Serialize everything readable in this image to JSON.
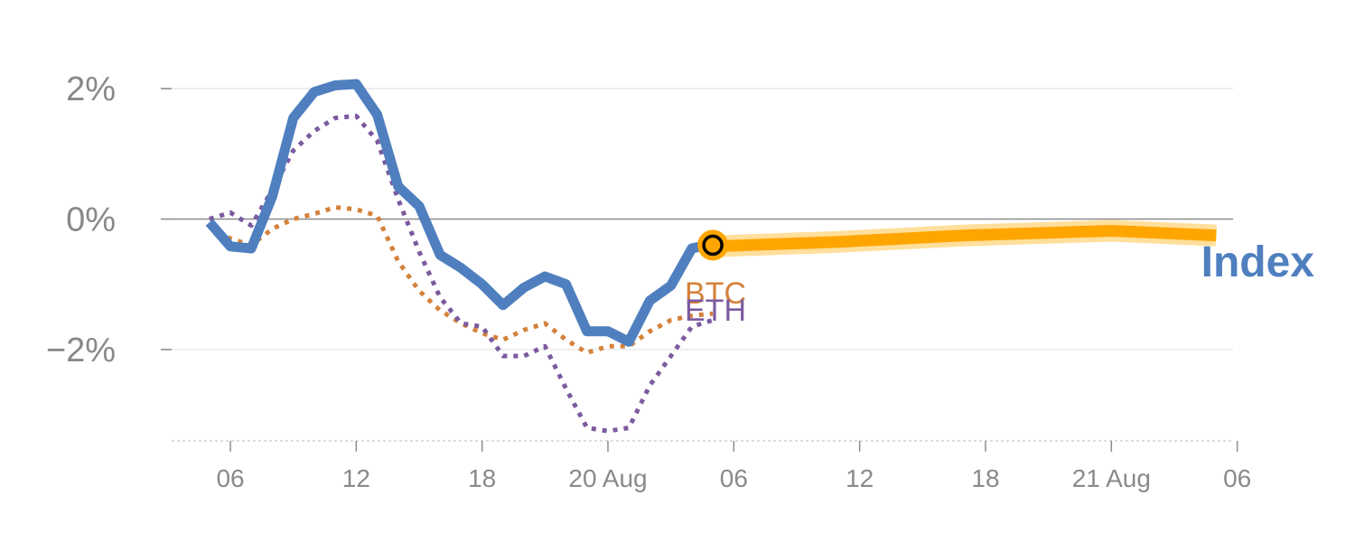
{
  "chart_data": {
    "type": "line",
    "title": "",
    "xlabel": "",
    "ylabel": "",
    "ylim": [
      -3.4,
      2.5
    ],
    "xlim": [
      3.2,
      53.8
    ],
    "y_ticks": [
      {
        "value": 2,
        "label": "2%"
      },
      {
        "value": 0,
        "label": "0%"
      },
      {
        "value": -2,
        "label": "−2%"
      }
    ],
    "x_ticks": [
      {
        "value": 6,
        "label": "06"
      },
      {
        "value": 12,
        "label": "12"
      },
      {
        "value": 18,
        "label": "18"
      },
      {
        "value": 24,
        "label": "20 Aug"
      },
      {
        "value": 30,
        "label": "06"
      },
      {
        "value": 36,
        "label": "12"
      },
      {
        "value": 42,
        "label": "18"
      },
      {
        "value": 48,
        "label": "21 Aug"
      },
      {
        "value": 54,
        "label": "06"
      }
    ],
    "series": [
      {
        "name": "Index",
        "label": "Index",
        "color": "#4f7fbf",
        "style": "solid",
        "x": [
          5,
          6,
          7,
          8,
          9,
          10,
          11,
          12,
          13,
          14,
          15,
          16,
          17,
          18,
          19,
          20,
          21,
          22,
          23,
          24,
          25,
          26,
          27,
          28,
          29
        ],
        "values": [
          -0.05,
          -0.42,
          -0.45,
          0.35,
          1.55,
          1.95,
          2.05,
          2.07,
          1.6,
          0.5,
          0.2,
          -0.55,
          -0.75,
          -1.0,
          -1.32,
          -1.05,
          -0.88,
          -1.0,
          -1.72,
          -1.72,
          -1.88,
          -1.25,
          -1.02,
          -0.45,
          -0.38
        ]
      },
      {
        "name": "BTC",
        "label": "BTC",
        "color": "#d4823c",
        "style": "dotted",
        "x": [
          5,
          6,
          7,
          8,
          9,
          10,
          11,
          12,
          13,
          14,
          15,
          16,
          17,
          18,
          19,
          20,
          21,
          22,
          23,
          24,
          25,
          26,
          27,
          28,
          29
        ],
        "values": [
          -0.1,
          -0.3,
          -0.4,
          -0.15,
          0.0,
          0.08,
          0.18,
          0.15,
          0.05,
          -0.65,
          -1.1,
          -1.4,
          -1.6,
          -1.75,
          -1.85,
          -1.7,
          -1.6,
          -1.85,
          -2.05,
          -1.95,
          -1.95,
          -1.72,
          -1.55,
          -1.48,
          -1.45
        ]
      },
      {
        "name": "ETH",
        "label": "ETH",
        "color": "#7b5aa0",
        "style": "dotted",
        "x": [
          5,
          6,
          7,
          8,
          9,
          10,
          11,
          12,
          13,
          14,
          15,
          16,
          17,
          18,
          19,
          20,
          21,
          22,
          23,
          24,
          25,
          26,
          27,
          28,
          29
        ],
        "values": [
          0.0,
          0.1,
          -0.1,
          0.45,
          1.05,
          1.35,
          1.55,
          1.58,
          1.2,
          0.3,
          -0.5,
          -1.2,
          -1.6,
          -1.65,
          -2.1,
          -2.1,
          -1.95,
          -2.6,
          -3.2,
          -3.25,
          -3.2,
          -2.55,
          -2.1,
          -1.65,
          -1.55
        ]
      },
      {
        "name": "Index forecast",
        "color": "#ffa500",
        "halo_color": "#ffd98a",
        "style": "solid",
        "x": [
          29,
          35,
          41,
          48,
          53
        ],
        "values": [
          -0.42,
          -0.35,
          -0.25,
          -0.18,
          -0.25
        ]
      }
    ],
    "marker": {
      "x": 29,
      "value": -0.4,
      "fill": "#ffa500",
      "ring": "#000000"
    },
    "zero_line": true,
    "grid": true
  }
}
